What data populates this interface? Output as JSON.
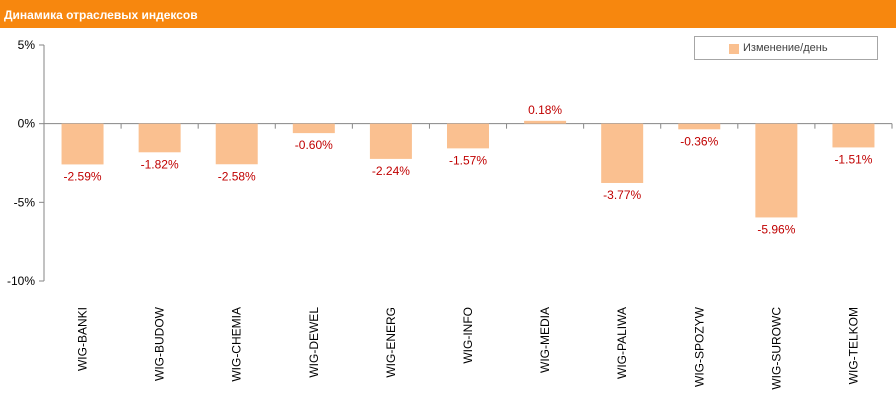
{
  "header": {
    "title": "Динамика отраслевых индексов"
  },
  "colors": {
    "header": "#f7870e",
    "bar": "#fac090",
    "data_label": "#c00000",
    "axis_text": "#000000"
  },
  "chart_data": {
    "type": "bar",
    "title": "Динамика отраслевых индексов",
    "categories": [
      "WIG-BANKI",
      "WIG-BUDOW",
      "WIG-CHEMIA",
      "WIG-DEWEL",
      "WIG-ENERG",
      "WIG-INFO",
      "WIG-MEDIA",
      "WIG-PALIWA",
      "WIG-SPOZYW",
      "WIG-SUROWC",
      "WIG-TELKOM"
    ],
    "series": [
      {
        "name": "Изменение/день",
        "values": [
          -2.59,
          -1.82,
          -2.58,
          -0.6,
          -2.24,
          -1.57,
          0.18,
          -3.77,
          -0.36,
          -5.96,
          -1.51
        ]
      }
    ],
    "data_labels": [
      "-2.59%",
      "-1.82%",
      "-2.58%",
      "-0.60%",
      "-2.24%",
      "-1.57%",
      "0.18%",
      "-3.77%",
      "-0.36%",
      "-5.96%",
      "-1.51%"
    ],
    "yticks": [
      5,
      0,
      -5,
      -10
    ],
    "ytick_labels": [
      "5%",
      "0%",
      "-5%",
      "-10%"
    ],
    "ylim": [
      -10,
      5
    ],
    "legend": "top-right",
    "grid": false
  }
}
